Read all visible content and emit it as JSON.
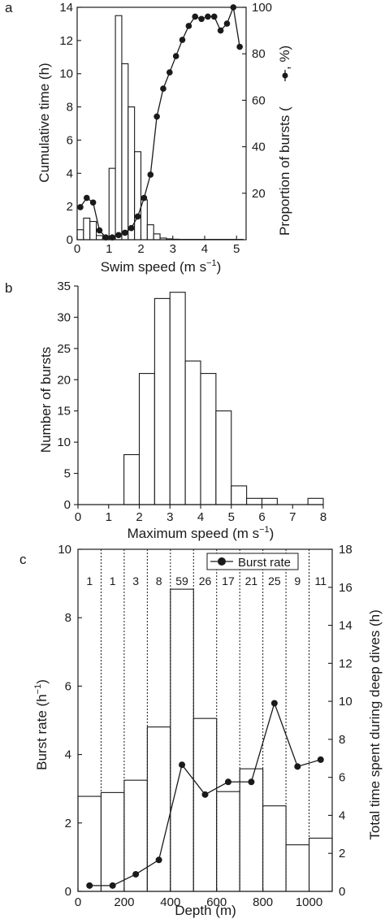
{
  "chart_data": [
    {
      "panel": "a",
      "type": "bar",
      "xlabel": "Swim speed (m s",
      "xlabel_sup": "−1",
      "xlabel_end": ")",
      "ylabel": "Cumulative time (h)",
      "y2label": "Proportion of bursts (",
      "y2label_end": ", %)",
      "xlim": [
        0,
        5.3
      ],
      "ylim": [
        0,
        14
      ],
      "y2lim": [
        0,
        100
      ],
      "xticks": [
        "0",
        "1",
        "2",
        "3",
        "4",
        "5"
      ],
      "yticks": [
        "0",
        "2",
        "4",
        "6",
        "8",
        "10",
        "12",
        "14"
      ],
      "y2ticks": [
        "20",
        "40",
        "60",
        "80",
        "100"
      ],
      "bin_width": 0.2,
      "bins": [
        {
          "x": 0.0,
          "value": 0.6
        },
        {
          "x": 0.2,
          "value": 1.3
        },
        {
          "x": 0.4,
          "value": 1.1
        },
        {
          "x": 0.6,
          "value": 0.25
        },
        {
          "x": 0.8,
          "value": 0.1
        },
        {
          "x": 1.0,
          "value": 4.3
        },
        {
          "x": 1.2,
          "value": 13.5
        },
        {
          "x": 1.4,
          "value": 10.6
        },
        {
          "x": 1.6,
          "value": 8.0
        },
        {
          "x": 1.8,
          "value": 5.3
        },
        {
          "x": 2.0,
          "value": 2.4
        },
        {
          "x": 2.2,
          "value": 0.9
        },
        {
          "x": 2.4,
          "value": 0.35
        },
        {
          "x": 2.6,
          "value": 0.1
        },
        {
          "x": 2.8,
          "value": 0.05
        },
        {
          "x": 3.0,
          "value": 0.03
        },
        {
          "x": 3.2,
          "value": 0.02
        },
        {
          "x": 3.4,
          "value": 0.02
        },
        {
          "x": 3.6,
          "value": 0.02
        },
        {
          "x": 3.8,
          "value": 0.02
        },
        {
          "x": 4.0,
          "value": 0.02
        },
        {
          "x": 4.2,
          "value": 0.02
        },
        {
          "x": 4.4,
          "value": 0.02
        },
        {
          "x": 4.6,
          "value": 0.02
        },
        {
          "x": 4.8,
          "value": 0.02
        },
        {
          "x": 5.0,
          "value": 0.02
        }
      ],
      "series": [
        {
          "axis": "right",
          "x": [
            0.1,
            0.3,
            0.5,
            0.7,
            0.9,
            1.1,
            1.3,
            1.5,
            1.7,
            1.9,
            2.1,
            2.3,
            2.5,
            2.7,
            2.9,
            3.1,
            3.3,
            3.5,
            3.7,
            3.9,
            4.1,
            4.3,
            4.5,
            4.7,
            4.9,
            5.1
          ],
          "values": [
            14,
            18,
            16,
            4,
            1,
            1,
            2,
            3,
            5,
            10,
            18,
            28,
            53,
            65,
            72,
            79,
            86,
            92,
            96,
            95,
            96,
            96,
            90,
            93,
            100,
            83
          ]
        }
      ]
    },
    {
      "panel": "b",
      "type": "bar",
      "xlabel": "Maximum speed  (m s",
      "xlabel_sup": "−1",
      "xlabel_end": ")",
      "ylabel": "Number of bursts",
      "xlim": [
        0,
        8
      ],
      "ylim": [
        0,
        35
      ],
      "xticks": [
        "0",
        "1",
        "2",
        "3",
        "4",
        "5",
        "6",
        "7",
        "8"
      ],
      "yticks": [
        "0",
        "5",
        "10",
        "15",
        "20",
        "25",
        "30",
        "35"
      ],
      "bin_width": 0.5,
      "bins": [
        {
          "x": 1.5,
          "value": 8
        },
        {
          "x": 2.0,
          "value": 21
        },
        {
          "x": 2.5,
          "value": 33
        },
        {
          "x": 3.0,
          "value": 34
        },
        {
          "x": 3.5,
          "value": 23
        },
        {
          "x": 4.0,
          "value": 21
        },
        {
          "x": 4.5,
          "value": 15
        },
        {
          "x": 5.0,
          "value": 3
        },
        {
          "x": 5.5,
          "value": 1
        },
        {
          "x": 6.0,
          "value": 1
        },
        {
          "x": 7.5,
          "value": 1
        }
      ]
    },
    {
      "panel": "c",
      "type": "bar",
      "xlabel": "Depth (m)",
      "ylabel": "Burst rate (h",
      "ylabel_sup": "−1",
      "ylabel_end": ")",
      "y2label": "Total time spent during deep dives (h)",
      "xlim": [
        0,
        1100
      ],
      "ylim": [
        0,
        10
      ],
      "y2lim": [
        0,
        18
      ],
      "xticks": [
        "0",
        "200",
        "400",
        "600",
        "800",
        "1000"
      ],
      "yticks": [
        "0",
        "2",
        "4",
        "6",
        "8",
        "10"
      ],
      "y2ticks": [
        "0",
        "2",
        "4",
        "6",
        "8",
        "10",
        "12",
        "14",
        "16",
        "18"
      ],
      "legend": "Burst rate",
      "legend_position": "top-right",
      "bin_width": 100,
      "categories": [
        "0-100",
        "100-200",
        "200-300",
        "300-400",
        "400-500",
        "500-600",
        "600-700",
        "700-800",
        "800-900",
        "900-1000",
        "1000-1100"
      ],
      "counts": [
        "1",
        "1",
        "3",
        "8",
        "59",
        "26",
        "17",
        "21",
        "25",
        "9",
        "11"
      ],
      "bars_right_axis": [
        5.0,
        5.2,
        5.85,
        8.65,
        15.9,
        9.1,
        5.25,
        6.45,
        4.5,
        2.45,
        2.8
      ],
      "series": [
        {
          "name": "Burst rate",
          "x": [
            50,
            150,
            250,
            350,
            450,
            550,
            650,
            750,
            850,
            950,
            1050
          ],
          "values": [
            0.17,
            0.17,
            0.5,
            0.92,
            3.7,
            2.83,
            3.2,
            3.2,
            5.5,
            3.65,
            3.85
          ]
        }
      ]
    }
  ]
}
